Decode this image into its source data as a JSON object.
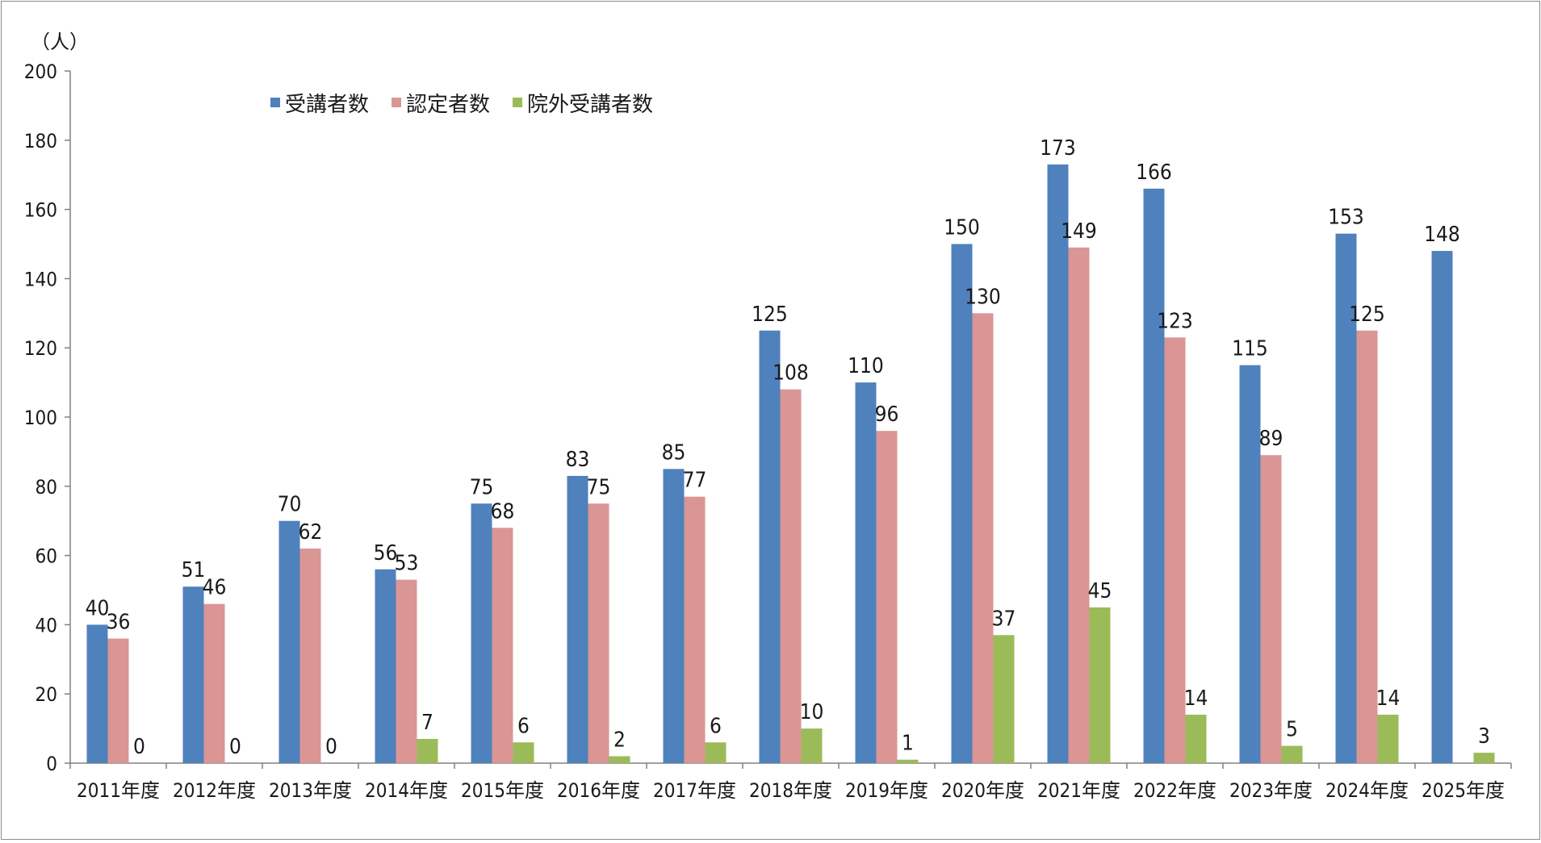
{
  "chart_data": {
    "type": "bar",
    "ylabel": "（人）",
    "ylim": [
      0,
      200
    ],
    "yticks": [
      0,
      20,
      40,
      60,
      80,
      100,
      120,
      140,
      160,
      180,
      200
    ],
    "legend_position": "top-left",
    "grid": false,
    "categories": [
      "2011年度",
      "2012年度",
      "2013年度",
      "2014年度",
      "2015年度",
      "2016年度",
      "2017年度",
      "2018年度",
      "2019年度",
      "2020年度",
      "2021年度",
      "2022年度",
      "2023年度",
      "2024年度",
      "2025年度"
    ],
    "series": [
      {
        "name": "受講者数",
        "color": "#4f81bd",
        "values": [
          40,
          51,
          70,
          56,
          75,
          83,
          85,
          125,
          110,
          150,
          173,
          166,
          115,
          153,
          148
        ]
      },
      {
        "name": "認定者数",
        "color": "#d99694",
        "values": [
          36,
          46,
          62,
          53,
          68,
          75,
          77,
          108,
          96,
          130,
          149,
          123,
          89,
          125,
          null
        ]
      },
      {
        "name": "院外受講者数",
        "color": "#9bbb59",
        "values": [
          0,
          0,
          0,
          7,
          6,
          2,
          6,
          10,
          1,
          37,
          45,
          14,
          5,
          14,
          3
        ]
      }
    ]
  }
}
